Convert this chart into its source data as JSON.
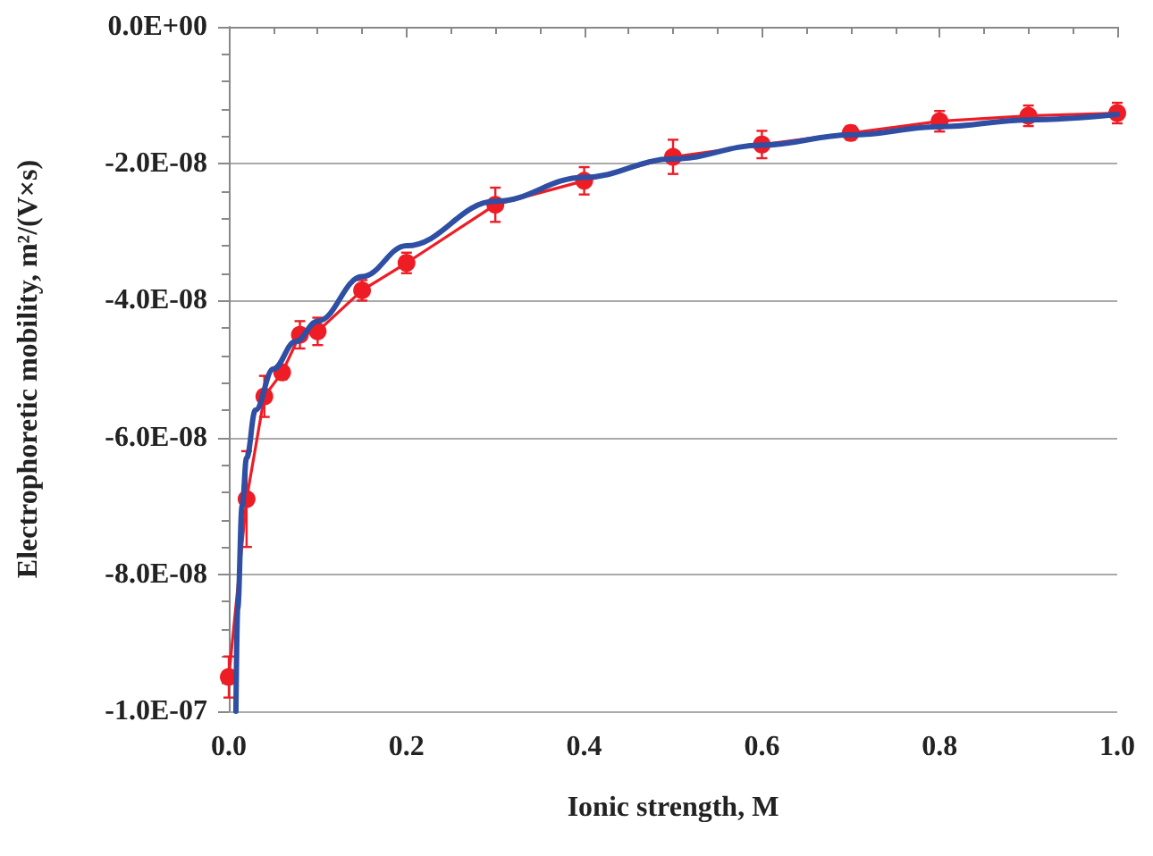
{
  "chart_data": {
    "type": "line",
    "xlabel": "Ionic strength, M",
    "ylabel": "Electrophoretic mobility, m²/(V×s)",
    "xlim": [
      0,
      1
    ],
    "xticks": [
      {
        "value": 0,
        "label": "0.0"
      },
      {
        "value": 0.2,
        "label": "0.2"
      },
      {
        "value": 0.4,
        "label": "0.4"
      },
      {
        "value": 0.6,
        "label": "0.6"
      },
      {
        "value": 0.8,
        "label": "0.8"
      },
      {
        "value": 1,
        "label": "1.0"
      }
    ],
    "ylim": [
      -1e-07,
      0
    ],
    "yticks": [
      {
        "value": -1e-07,
        "label": "-1.0E-07"
      },
      {
        "value": -8e-08,
        "label": "-8.0E-08"
      },
      {
        "value": -6e-08,
        "label": "-6.0E-08"
      },
      {
        "value": -4e-08,
        "label": "-4.0E-08"
      },
      {
        "value": -2e-08,
        "label": "-2.0E-08"
      },
      {
        "value": 0,
        "label": "0.0E+00"
      }
    ],
    "grid": "y",
    "series": [
      {
        "color": "#ee1c25",
        "marker": "circle",
        "line_style": "solid",
        "x": [
          0,
          0.02,
          0.04,
          0.06,
          0.08,
          0.1,
          0.15,
          0.2,
          0.3,
          0.4,
          0.5,
          0.6,
          0.7,
          0.8,
          0.9,
          1.0
        ],
        "values": [
          -9.5e-08,
          -6.9e-08,
          -5.4e-08,
          -5.05e-08,
          -4.5e-08,
          -4.45e-08,
          -3.85e-08,
          -3.45e-08,
          -2.6e-08,
          -2.25e-08,
          -1.9e-08,
          -1.72e-08,
          -1.55e-08,
          -1.38e-08,
          -1.3e-08,
          -1.26e-08
        ],
        "errors": [
          3e-09,
          7e-09,
          3e-09,
          1e-09,
          2e-09,
          2e-09,
          1.5e-09,
          1.5e-09,
          2.5e-09,
          2e-09,
          2.5e-09,
          2e-09,
          1e-09,
          1.5e-09,
          1.5e-09,
          1.5e-09
        ]
      },
      {
        "color": "#2e4fa3",
        "marker": "none",
        "line_style": "solid",
        "x": [
          0.008,
          0.01,
          0.015,
          0.02,
          0.03,
          0.05,
          0.075,
          0.1,
          0.15,
          0.2,
          0.3,
          0.4,
          0.5,
          0.6,
          0.7,
          0.8,
          0.9,
          1.0
        ],
        "values": [
          -1e-07,
          -8.5e-08,
          -7e-08,
          -6.3e-08,
          -5.6e-08,
          -5e-08,
          -4.6e-08,
          -4.3e-08,
          -3.65e-08,
          -3.2e-08,
          -2.55e-08,
          -2.2e-08,
          -1.93e-08,
          -1.73e-08,
          -1.58e-08,
          -1.46e-08,
          -1.36e-08,
          -1.28e-08
        ]
      }
    ]
  }
}
